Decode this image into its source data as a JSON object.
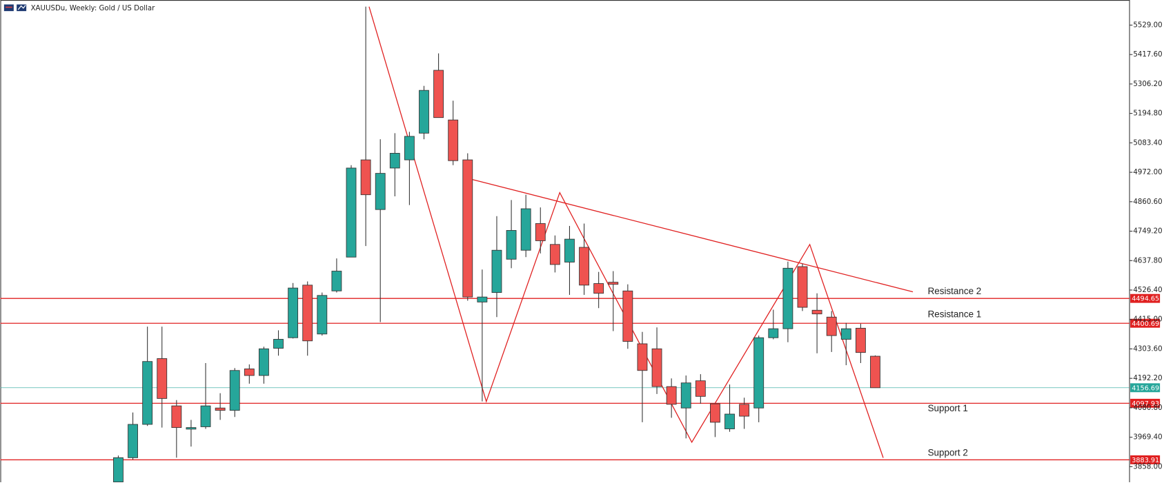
{
  "chart_data": {
    "type": "candlestick",
    "title": "XAUUSDu, Weekly:  Gold / US Dollar",
    "up_color": "#26a69a",
    "down_color": "#ef5350",
    "ylim": [
      3799,
      5624
    ],
    "yticks": [
      {
        "value": 5529,
        "label": "5529.00"
      },
      {
        "value": 5417.6,
        "label": "5417.60"
      },
      {
        "value": 5306.2,
        "label": "5306.20"
      },
      {
        "value": 5194.8,
        "label": "5194.80"
      },
      {
        "value": 5083.4,
        "label": "5083.40"
      },
      {
        "value": 4972,
        "label": "4972.00"
      },
      {
        "value": 4860.6,
        "label": "4860.60"
      },
      {
        "value": 4749.2,
        "label": "4749.20"
      },
      {
        "value": 4637.8,
        "label": "4637.80"
      },
      {
        "value": 4526.4,
        "label": "4526.40"
      },
      {
        "value": 4415,
        "label": "4415.00"
      },
      {
        "value": 4303.6,
        "label": "4303.60"
      },
      {
        "value": 4192.2,
        "label": "4192.20"
      },
      {
        "value": 4080.8,
        "label": "4080.80"
      },
      {
        "value": 3969.4,
        "label": "3969.40"
      },
      {
        "value": 3858,
        "label": "3858.00"
      }
    ],
    "open": [
      3800,
      3892,
      4018,
      4267,
      4088,
      4000,
      4009,
      4080,
      4071,
      4228,
      4203,
      4306,
      4346,
      4545,
      4360,
      4523,
      4651,
      5019,
      4831,
      4988,
      5019,
      5120,
      5358,
      5170,
      5019,
      4481,
      4517,
      4643,
      4677,
      4778,
      4699,
      4632,
      4688,
      4551,
      4556,
      4523,
      4323,
      4304,
      4161,
      4080,
      4183,
      4096,
      4001,
      4094,
      4080,
      4346,
      4380,
      4615,
      4450,
      4424,
      4340,
      4382,
      4276
    ],
    "high": [
      3900,
      4063,
      4388,
      4388,
      4110,
      4035,
      4250,
      4136,
      4231,
      4245,
      4312,
      4374,
      4553,
      4559,
      4517,
      4646,
      4999,
      5599,
      5097,
      5120,
      5125,
      5299,
      5422,
      5243,
      5044,
      4604,
      4806,
      4867,
      4887,
      4839,
      4733,
      4769,
      4778,
      4595,
      4598,
      4548,
      4368,
      4385,
      4192,
      4203,
      4208,
      4096,
      4169,
      4119,
      4354,
      4452,
      4634,
      4626,
      4514,
      4447,
      4402,
      4399,
      4279
    ],
    "low": [
      3780,
      3885,
      4012,
      4006,
      3892,
      3934,
      4001,
      4035,
      4046,
      4172,
      4172,
      4278,
      4343,
      4278,
      4354,
      4517,
      4651,
      4693,
      4405,
      4881,
      4848,
      5097,
      5179,
      4999,
      4486,
      4105,
      4424,
      4609,
      4651,
      4665,
      4593,
      4508,
      4508,
      4458,
      4371,
      4304,
      4026,
      4133,
      4043,
      3965,
      4096,
      3970,
      3990,
      4001,
      4026,
      4340,
      4329,
      4447,
      4287,
      4292,
      4242,
      4250,
      4156
    ],
    "close": [
      3892,
      4018,
      4256,
      4116,
      4006,
      4006,
      4088,
      4071,
      4222,
      4203,
      4304,
      4340,
      4534,
      4334,
      4506,
      4598,
      4988,
      4887,
      4968,
      5044,
      5108,
      5282,
      5179,
      5016,
      4500,
      4500,
      4677,
      4752,
      4834,
      4713,
      4623,
      4719,
      4545,
      4514,
      4548,
      4332,
      4222,
      4161,
      4094,
      4175,
      4124,
      4026,
      4057,
      4049,
      4346,
      4380,
      4609,
      4461,
      4436,
      4354,
      4380,
      4290,
      4156.69
    ],
    "levels": [
      {
        "value": 4494.65,
        "color": "#e02020"
      },
      {
        "value": 4400.69,
        "color": "#e02020"
      },
      {
        "value": 4156.69,
        "color": "#26a69a"
      },
      {
        "value": 4097.93,
        "color": "#e02020"
      },
      {
        "value": 3883.91,
        "color": "#e02020"
      }
    ],
    "annotations": [
      "Resistance 2",
      "Resistance 1",
      "Support 1",
      "Support 2"
    ]
  }
}
